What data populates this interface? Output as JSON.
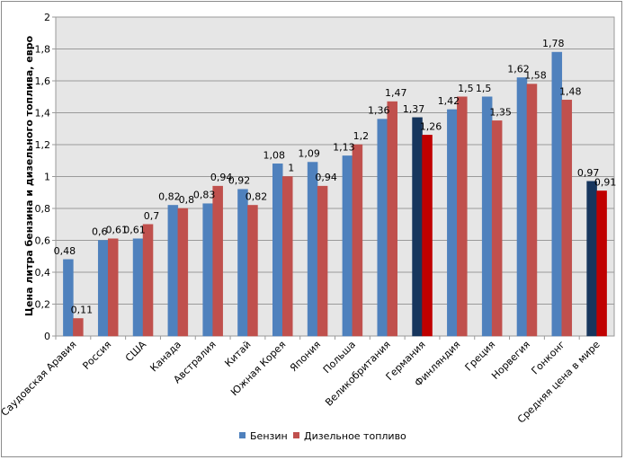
{
  "chart_data": {
    "type": "bar",
    "title": "",
    "xlabel": "",
    "ylabel": "Цена литра бензина и дизельного топлива, евро",
    "ylim": [
      0,
      2
    ],
    "yticks": [
      "0",
      "0,2",
      "0,4",
      "0,6",
      "0,8",
      "1",
      "1,2",
      "1,4",
      "1,6",
      "1,8",
      "2"
    ],
    "grid": true,
    "legend_position": "bottom",
    "categories": [
      "Саудовская Аравия",
      "Россия",
      "США",
      "Канада",
      "Австралия",
      "Китай",
      "Южная Корея",
      "Япония",
      "Польша",
      "Великобритания",
      "Германия",
      "Финляндия",
      "Греция",
      "Норвегия",
      "Гонконг",
      "Средняя цена в мире"
    ],
    "highlight_categories": [
      "Германия",
      "Средняя цена в мире"
    ],
    "series": [
      {
        "name": "Бензин",
        "color": "#4f81bd",
        "highlight_color": "#17365d",
        "values": [
          0.48,
          0.6,
          0.61,
          0.82,
          0.83,
          0.92,
          1.08,
          1.09,
          1.13,
          1.36,
          1.37,
          1.42,
          1.5,
          1.62,
          1.78,
          0.97
        ],
        "labels": [
          "0,48",
          "0,6",
          "0,61",
          "0,82",
          "0,83",
          "0,92",
          "1,08",
          "1,09",
          "1,13",
          "1,36",
          "1,37",
          "1,42",
          "1,5",
          "1,62",
          "1,78",
          "0,97"
        ]
      },
      {
        "name": "Дизельное топливо",
        "color": "#c0504d",
        "highlight_color": "#c00000",
        "values": [
          0.11,
          0.61,
          0.7,
          0.8,
          0.94,
          0.82,
          1.0,
          0.94,
          1.2,
          1.47,
          1.26,
          1.5,
          1.35,
          1.58,
          1.48,
          0.91
        ],
        "labels": [
          "0,11",
          "0,61",
          "0,7",
          "0,8",
          "0,94",
          "0,82",
          "1",
          "0,94",
          "1,2",
          "1,47",
          "1,26",
          "1,5",
          "1,35",
          "1,58",
          "1,48",
          "0,91"
        ]
      }
    ]
  }
}
